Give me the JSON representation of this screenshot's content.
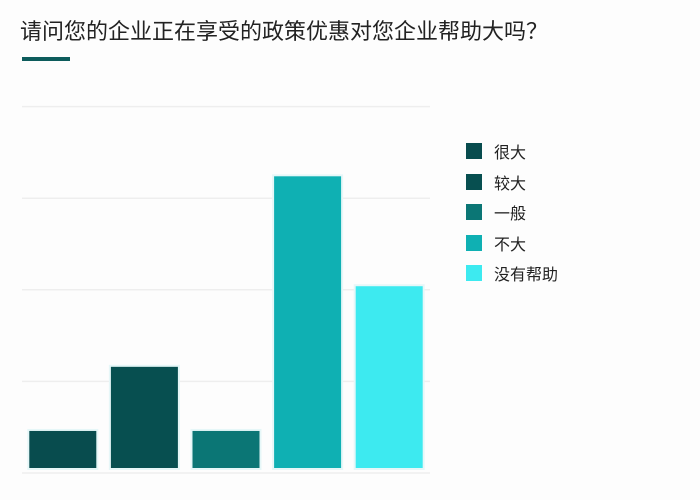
{
  "title": "请问您的企业正在享受的政策优惠对您企业帮助大吗？",
  "accent_color": "#0d5c5c",
  "chart_data": {
    "type": "bar",
    "title": "请问您的企业正在享受的政策优惠对您企业帮助大吗？",
    "categories": [
      "很大",
      "较大",
      "一般",
      "不大",
      "没有帮助"
    ],
    "values": [
      0.47,
      1.17,
      0.47,
      3.25,
      2.05
    ],
    "colors": [
      "#084c4e",
      "#074f50",
      "#0b7675",
      "#0fb0b3",
      "#3deaf0"
    ],
    "ylim": [
      0,
      4
    ],
    "grid": true,
    "axis_labels_shown": false,
    "legend": {
      "placement": "right",
      "entries": [
        "很大",
        "较大",
        "一般",
        "不大",
        "没有帮助"
      ]
    }
  }
}
